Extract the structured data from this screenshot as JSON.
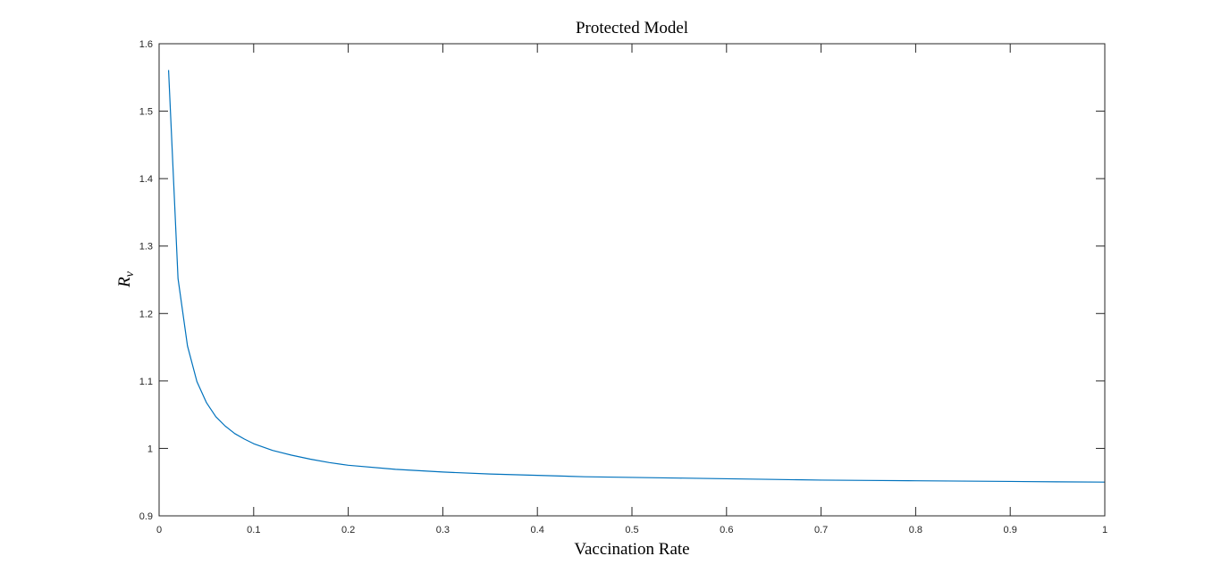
{
  "chart_data": {
    "type": "line",
    "title": "Protected Model",
    "xlabel": "Vaccination Rate",
    "ylabel": {
      "symbol": "R",
      "subscript": "v"
    },
    "xlim": [
      0,
      1
    ],
    "ylim": [
      0.9,
      1.6
    ],
    "xticks": [
      0,
      0.1,
      0.2,
      0.3,
      0.4,
      0.5,
      0.6,
      0.7,
      0.8,
      0.9,
      1
    ],
    "xtick_labels": [
      "0",
      "0.1",
      "0.2",
      "0.3",
      "0.4",
      "0.5",
      "0.6",
      "0.7",
      "0.8",
      "0.9",
      "1"
    ],
    "yticks": [
      0.9,
      1,
      1.1,
      1.2,
      1.3,
      1.4,
      1.5,
      1.6
    ],
    "ytick_labels": [
      "0.9",
      "1",
      "1.1",
      "1.2",
      "1.3",
      "1.4",
      "1.5",
      "1.6"
    ],
    "grid": false,
    "series": [
      {
        "color": "#0072bd",
        "x": [
          0.01,
          0.02,
          0.03,
          0.04,
          0.05,
          0.06,
          0.07,
          0.08,
          0.09,
          0.1,
          0.12,
          0.14,
          0.16,
          0.18,
          0.2,
          0.25,
          0.3,
          0.35,
          0.4,
          0.45,
          0.5,
          0.55,
          0.6,
          0.65,
          0.7,
          0.75,
          0.8,
          0.85,
          0.9,
          0.95,
          1.0
        ],
        "y": [
          1.561,
          1.252,
          1.152,
          1.099,
          1.068,
          1.047,
          1.033,
          1.022,
          1.014,
          1.007,
          0.997,
          0.99,
          0.984,
          0.979,
          0.975,
          0.969,
          0.965,
          0.962,
          0.96,
          0.958,
          0.957,
          0.956,
          0.955,
          0.954,
          0.953,
          0.9525,
          0.952,
          0.9515,
          0.951,
          0.9505,
          0.95
        ]
      }
    ]
  }
}
